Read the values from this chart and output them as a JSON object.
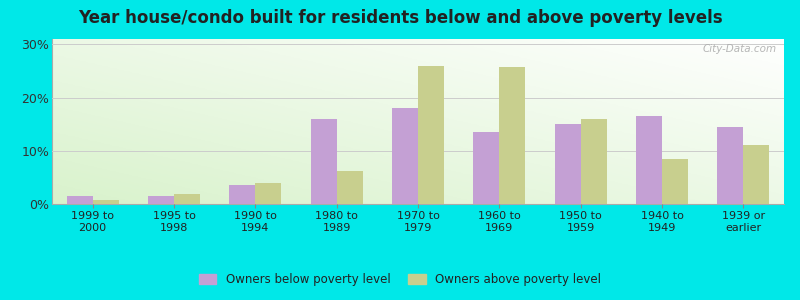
{
  "categories": [
    "1999 to\n2000",
    "1995 to\n1998",
    "1990 to\n1994",
    "1980 to\n1989",
    "1970 to\n1979",
    "1960 to\n1969",
    "1950 to\n1959",
    "1940 to\n1949",
    "1939 or\nearlier"
  ],
  "below_poverty": [
    1.5,
    1.5,
    3.5,
    16.0,
    18.0,
    13.5,
    15.0,
    16.5,
    14.5
  ],
  "above_poverty": [
    0.7,
    1.9,
    3.9,
    6.2,
    26.0,
    25.8,
    16.0,
    8.5,
    11.0
  ],
  "below_color": "#c4a0d4",
  "above_color": "#c8cf8e",
  "title": "Year house/condo built for residents below and above poverty levels",
  "title_fontsize": 12,
  "ylabel_ticks": [
    "0%",
    "10%",
    "20%",
    "30%"
  ],
  "ytick_vals": [
    0,
    10,
    20,
    30
  ],
  "ylim": [
    0,
    31
  ],
  "outer_background": "#00e8e8",
  "legend_below": "Owners below poverty level",
  "legend_above": "Owners above poverty level",
  "bar_width": 0.32,
  "watermark": "City-Data.com"
}
